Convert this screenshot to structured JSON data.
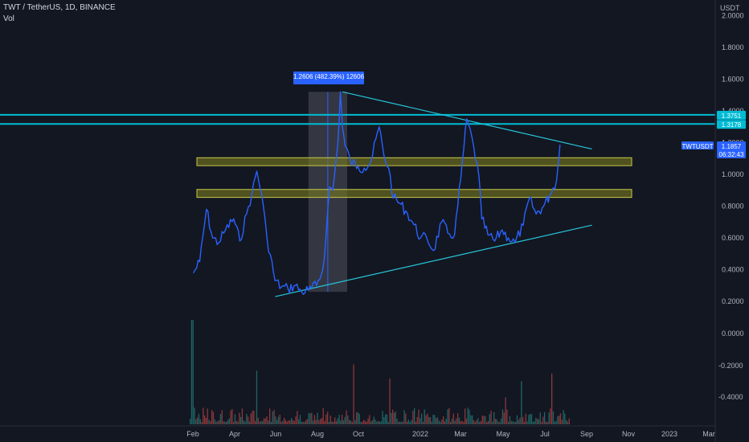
{
  "header": {
    "symbol_line": "TWT / TetherUS, 1D, BINANCE",
    "volume_label": "Vol"
  },
  "colors": {
    "background": "#131722",
    "price_line": "#2962ff",
    "horizontal_lines": "#00bcd4",
    "trendlines": "#26c6da",
    "zones_fill": "#7a7a1e",
    "zones_stroke": "#c8c84a",
    "highlight_box": "#5d606b",
    "tag_blue": "#2962ff",
    "volume_up": "#26a69a",
    "volume_down": "#ef5350"
  },
  "price_axis": {
    "unit": "USDT",
    "price_ticks": [
      "2.0000",
      "1.8000",
      "1.6000",
      "1.4000",
      "1.2000",
      "1.0000",
      "0.8000",
      "0.6000",
      "0.4000",
      "0.2000"
    ],
    "lower_ticks": [
      "0.0000",
      "-0.2000",
      "-0.4000"
    ]
  },
  "time_axis": {
    "labels": [
      "Feb",
      "Apr",
      "Jun",
      "Aug",
      "Oct",
      "2022",
      "Mar",
      "May",
      "Jul",
      "Sep",
      "Nov",
      "2023",
      "Mar"
    ]
  },
  "tags": {
    "level_upper": "1.3751",
    "level_lower": "1.3178",
    "symbol": "TWTUSDT",
    "last_price": "1.1857",
    "countdown": "06:32:43"
  },
  "measure_label": "1.2606 (482.39%) 12606",
  "chart_data": {
    "type": "line",
    "title": "TWT / TetherUS, 1D, BINANCE",
    "ylabel": "USDT",
    "ylim": [
      0.2,
      2.0
    ],
    "x": [
      "2021-02-01",
      "2021-02-10",
      "2021-02-20",
      "2021-03-01",
      "2021-03-10",
      "2021-03-20",
      "2021-04-01",
      "2021-04-10",
      "2021-04-20",
      "2021-04-28",
      "2021-05-05",
      "2021-05-12",
      "2021-05-20",
      "2021-06-01",
      "2021-06-10",
      "2021-06-20",
      "2021-07-01",
      "2021-07-10",
      "2021-07-20",
      "2021-08-01",
      "2021-08-10",
      "2021-08-15",
      "2021-08-20",
      "2021-08-25",
      "2021-09-01",
      "2021-09-05",
      "2021-09-08",
      "2021-09-12",
      "2021-09-20",
      "2021-10-01",
      "2021-10-10",
      "2021-10-20",
      "2021-11-01",
      "2021-11-08",
      "2021-11-15",
      "2021-11-22",
      "2021-12-01",
      "2021-12-10",
      "2021-12-20",
      "2022-01-01",
      "2022-01-10",
      "2022-01-20",
      "2022-02-01",
      "2022-02-10",
      "2022-02-20",
      "2022-03-01",
      "2022-03-10",
      "2022-03-20",
      "2022-03-28",
      "2022-04-01",
      "2022-04-10",
      "2022-04-20",
      "2022-05-01",
      "2022-05-10",
      "2022-05-20",
      "2022-06-01",
      "2022-06-10",
      "2022-06-20",
      "2022-07-01",
      "2022-07-10",
      "2022-07-20",
      "2022-07-25"
    ],
    "series": [
      {
        "values": [
          0.38,
          0.45,
          0.78,
          0.6,
          0.57,
          0.65,
          0.72,
          0.58,
          0.75,
          0.88,
          1.02,
          0.88,
          0.6,
          0.33,
          0.29,
          0.28,
          0.3,
          0.26,
          0.27,
          0.3,
          0.4,
          0.62,
          0.92,
          0.9,
          1.18,
          1.52,
          1.3,
          1.18,
          1.08,
          1.05,
          1.04,
          1.08,
          1.3,
          1.12,
          1.04,
          0.85,
          0.82,
          0.77,
          0.7,
          0.6,
          0.6,
          0.52,
          0.7,
          0.63,
          0.62,
          0.97,
          1.35,
          1.18,
          0.98,
          0.72,
          0.62,
          0.58,
          0.65,
          0.6,
          0.57,
          0.68,
          0.85,
          0.75,
          0.8,
          0.87,
          0.96,
          1.1857
        ]
      }
    ],
    "horizontal_lines": [
      1.3751,
      1.3178
    ],
    "zones": [
      {
        "from": 1.055,
        "to": 1.105
      },
      {
        "from": 0.855,
        "to": 0.905
      }
    ],
    "trendlines": [
      {
        "from": {
          "x": "2021-06-01",
          "y": 0.23
        },
        "to": {
          "x": "2022-09-10",
          "y": 0.68
        }
      },
      {
        "from": {
          "x": "2021-09-08",
          "y": 1.52
        },
        "to": {
          "x": "2022-09-10",
          "y": 1.16
        }
      }
    ],
    "measure_range": {
      "from": "2021-07-20",
      "to": "2021-09-15",
      "low": 0.26,
      "high": 1.52
    }
  }
}
